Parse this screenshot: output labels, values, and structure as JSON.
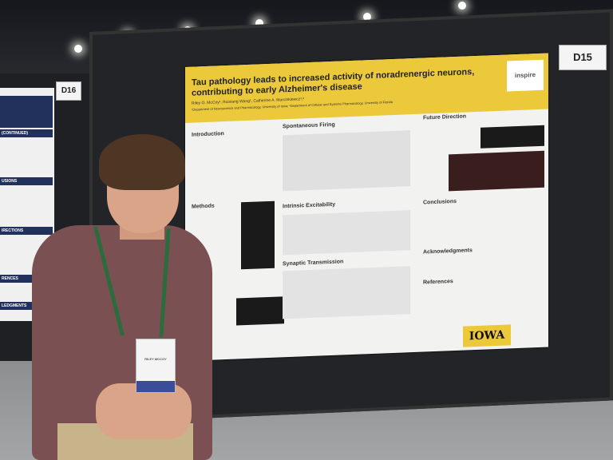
{
  "booth_labels": {
    "left": "D16",
    "right": "D15"
  },
  "poster": {
    "title": "Tau pathology leads to increased activity of noradrenergic neurons, contributing to early Alzheimer's disease",
    "authors": "Riley O. McCoy¹, Ruixiang Wang¹, Catherine A. Marcinkiewcz¹,²",
    "affiliation": "¹Department of Neuroscience and Pharmacology, University of Iowa; ²Department of Cellular and Systems Pharmacology, University of Florida",
    "logo": "inspire",
    "sections": [
      "Introduction",
      "Spontaneous Firing",
      "Future Direction",
      "Methods",
      "Intrinsic Excitability",
      "Conclusions",
      "Synaptic Transmission",
      "Acknowledgments",
      "References"
    ],
    "footer_logo": "IOWA"
  },
  "left_poster": {
    "sections": [
      "(CONTINUED)",
      "USIONS",
      "IRECTIONS",
      "RENCES",
      "LEDGMENTS"
    ]
  },
  "badge": {
    "name": "RILEY MCCOY"
  }
}
